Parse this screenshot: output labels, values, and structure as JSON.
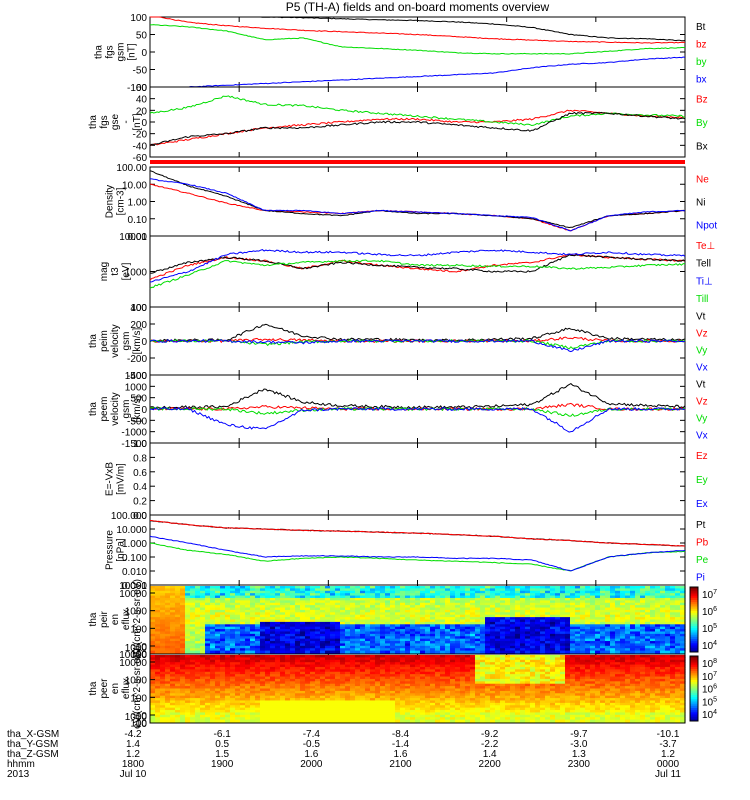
{
  "title": "P5 (TH-A) fields and on-board moments overview",
  "colors": {
    "black": "#000000",
    "red": "#ff0000",
    "green": "#00dd00",
    "blue": "#0000ff"
  },
  "chart_data": [
    {
      "type": "line",
      "ylabel": "tha fgs gsm [nT]",
      "yticks": [
        "100",
        "50",
        "0",
        "-50",
        "-100"
      ],
      "series": [
        {
          "name": "Bt",
          "color": "black",
          "values": [
            105,
            108,
            105,
            100,
            98,
            95,
            92,
            90,
            86,
            80,
            70,
            50,
            40,
            38,
            32
          ]
        },
        {
          "name": "bz",
          "color": "red",
          "values": [
            105,
            85,
            75,
            68,
            62,
            58,
            54,
            50,
            44,
            38,
            34,
            30,
            28,
            26,
            27
          ]
        },
        {
          "name": "by",
          "color": "green",
          "values": [
            78,
            72,
            60,
            35,
            40,
            15,
            10,
            5,
            -2,
            -5,
            -5,
            -5,
            2,
            10,
            12
          ]
        },
        {
          "name": "bx",
          "color": "blue",
          "values": [
            -110,
            -100,
            -95,
            -90,
            -85,
            -80,
            -75,
            -70,
            -65,
            -60,
            -45,
            -35,
            -30,
            -20,
            -15
          ]
        }
      ]
    },
    {
      "type": "line",
      "ylabel": "tha fgs gse - [nT]",
      "yticks": [
        "60",
        "40",
        "20",
        "0",
        "-20",
        "-40",
        "-60"
      ],
      "series": [
        {
          "name": "Bz",
          "color": "red",
          "values": [
            -40,
            -30,
            -20,
            -10,
            -5,
            0,
            5,
            5,
            0,
            0,
            5,
            20,
            15,
            10,
            8
          ]
        },
        {
          "name": "By",
          "color": "green",
          "values": [
            15,
            25,
            45,
            30,
            28,
            20,
            15,
            10,
            5,
            0,
            -5,
            10,
            15,
            12,
            10
          ]
        },
        {
          "name": "Bx",
          "color": "black",
          "values": [
            -40,
            -25,
            -20,
            -10,
            -10,
            -5,
            0,
            0,
            -5,
            -10,
            -15,
            15,
            15,
            10,
            5
          ]
        }
      ]
    },
    {
      "type": "bar",
      "ylabel": "",
      "note": "flag bar"
    },
    {
      "type": "line",
      "ylabel": "Density [cm-3]",
      "yticks": [
        "100.00",
        "10.00",
        "1.00",
        "0.10",
        "0.01"
      ],
      "log": true,
      "series": [
        {
          "name": "Ne",
          "color": "red",
          "values": [
            10,
            3,
            0.8,
            0.3,
            0.25,
            0.2,
            0.3,
            0.25,
            0.2,
            0.15,
            0.1,
            0.02,
            0.15,
            0.2,
            0.3
          ]
        },
        {
          "name": "Ni",
          "color": "black",
          "values": [
            60,
            8,
            2,
            0.3,
            0.2,
            0.15,
            0.3,
            0.2,
            0.2,
            0.15,
            0.1,
            0.03,
            0.15,
            0.2,
            0.3
          ]
        },
        {
          "name": "Npot",
          "color": "blue",
          "values": [
            20,
            10,
            3,
            0.3,
            0.3,
            0.2,
            0.3,
            0.25,
            0.2,
            0.15,
            0.12,
            0.02,
            0.15,
            0.25,
            0.3
          ]
        }
      ]
    },
    {
      "type": "line",
      "ylabel": "mag t3 [eV]",
      "yticks": [
        "10000",
        "1000",
        "100"
      ],
      "log": true,
      "series": [
        {
          "name": "Te⊥",
          "color": "red",
          "values": [
            600,
            1500,
            2500,
            2000,
            1200,
            2000,
            1500,
            1200,
            1000,
            1500,
            1800,
            3000,
            2500,
            2200,
            2000
          ]
        },
        {
          "name": "Tell",
          "color": "black",
          "values": [
            900,
            1800,
            2500,
            2000,
            1200,
            1800,
            1500,
            1300,
            1200,
            1000,
            1000,
            3000,
            2500,
            2200,
            2000
          ]
        },
        {
          "name": "Ti⊥",
          "color": "blue",
          "values": [
            500,
            1000,
            3000,
            4000,
            3500,
            3500,
            3000,
            2800,
            3500,
            4000,
            3500,
            3000,
            3500,
            3000,
            2800
          ]
        },
        {
          "name": "Till",
          "color": "green",
          "values": [
            350,
            800,
            2000,
            1500,
            1800,
            2000,
            2000,
            1500,
            1500,
            1400,
            1400,
            1200,
            1300,
            1500,
            1600
          ]
        }
      ]
    },
    {
      "type": "line",
      "ylabel": "tha peim velocity gsm [km/s]",
      "yticks": [
        "400",
        "200",
        "0",
        "-200",
        "-400"
      ],
      "series": [
        {
          "name": "Vt",
          "color": "black",
          "values": [
            5,
            10,
            10,
            200,
            60,
            20,
            20,
            10,
            10,
            20,
            30,
            150,
            30,
            20,
            10
          ]
        },
        {
          "name": "Vz",
          "color": "red",
          "values": [
            0,
            0,
            0,
            20,
            10,
            0,
            0,
            0,
            0,
            0,
            0,
            40,
            0,
            0,
            0
          ]
        },
        {
          "name": "Vy",
          "color": "green",
          "values": [
            0,
            0,
            0,
            -40,
            -10,
            0,
            0,
            0,
            0,
            0,
            0,
            -80,
            0,
            0,
            0
          ]
        },
        {
          "name": "Vx",
          "color": "blue",
          "values": [
            0,
            0,
            0,
            -10,
            -20,
            0,
            0,
            0,
            0,
            0,
            0,
            -120,
            0,
            0,
            0
          ]
        }
      ]
    },
    {
      "type": "line",
      "ylabel": "tha peem velocity gsm [km/s]",
      "yticks": [
        "1500",
        "1000",
        "500",
        "0",
        "-500",
        "-1000",
        "-1500"
      ],
      "series": [
        {
          "name": "Vt",
          "color": "black",
          "values": [
            50,
            80,
            100,
            900,
            300,
            150,
            100,
            80,
            80,
            120,
            200,
            1100,
            250,
            150,
            100
          ]
        },
        {
          "name": "Vz",
          "color": "red",
          "values": [
            0,
            0,
            0,
            100,
            50,
            0,
            0,
            0,
            0,
            0,
            0,
            200,
            0,
            0,
            0
          ]
        },
        {
          "name": "Vy",
          "color": "green",
          "values": [
            0,
            0,
            0,
            -200,
            -50,
            0,
            0,
            0,
            0,
            0,
            0,
            -300,
            0,
            0,
            0
          ]
        },
        {
          "name": "Vx",
          "color": "blue",
          "values": [
            0,
            0,
            -700,
            -900,
            -50,
            0,
            0,
            0,
            0,
            0,
            0,
            -1000,
            0,
            0,
            0
          ]
        }
      ]
    },
    {
      "type": "line",
      "ylabel": "E=-VxB [mV/m]",
      "yticks": [
        "1.0",
        "0.8",
        "0.6",
        "0.4",
        "0.2",
        "0.0"
      ],
      "series": [
        {
          "name": "Ez",
          "color": "red",
          "values": []
        },
        {
          "name": "Ey",
          "color": "green",
          "values": []
        },
        {
          "name": "Ex",
          "color": "blue",
          "values": []
        }
      ]
    },
    {
      "type": "line",
      "ylabel": "Pressure [nPa]",
      "yticks": [
        "100.000",
        "10.000",
        "1.000",
        "0.100",
        "0.010",
        "0.001"
      ],
      "log": true,
      "series": [
        {
          "name": "Pt",
          "color": "black",
          "values": [
            40,
            20,
            12,
            10,
            8,
            7,
            6,
            5,
            4,
            3,
            2,
            1.5,
            1,
            0.8,
            0.6
          ]
        },
        {
          "name": "Pb",
          "color": "red",
          "values": [
            40,
            20,
            12,
            10,
            8,
            7,
            6,
            5,
            4,
            3,
            2,
            1.5,
            1,
            0.8,
            0.6
          ]
        },
        {
          "name": "Pe",
          "color": "green",
          "values": [
            1,
            0.3,
            0.15,
            0.05,
            0.08,
            0.1,
            0.08,
            0.06,
            0.05,
            0.04,
            0.03,
            0.01,
            0.1,
            0.2,
            0.25
          ]
        },
        {
          "name": "Pi",
          "color": "blue",
          "values": [
            3,
            1,
            0.3,
            0.1,
            0.12,
            0.12,
            0.1,
            0.1,
            0.08,
            0.08,
            0.06,
            0.01,
            0.1,
            0.2,
            0.3
          ]
        }
      ]
    },
    {
      "type": "heatmap",
      "ylabel": "tha peir en eflux eV/(cm^2-s-sr-eV)",
      "yticks": [
        "10000",
        "1000",
        "100",
        "10"
      ],
      "colorbar": [
        "10^7",
        "10^6",
        "10^5",
        "10^4"
      ]
    },
    {
      "type": "heatmap",
      "ylabel": "tha peer en eflux eV/(cm^2-s-sr-eV)",
      "yticks": [
        "10000",
        "1000",
        "100",
        "10"
      ],
      "colorbar": [
        "10^8",
        "10^7",
        "10^6",
        "10^5",
        "10^4"
      ]
    }
  ],
  "xaxis": {
    "row_labels": [
      "tha_X-GSM",
      "tha_Y-GSM",
      "tha_Z-GSM",
      "hhmm",
      "2013"
    ],
    "columns": [
      [
        "-4.2",
        "1.4",
        "1.2",
        "1800",
        "Jul 10"
      ],
      [
        "-6.1",
        "0.5",
        "1.5",
        "1900",
        ""
      ],
      [
        "-7.4",
        "-0.5",
        "1.6",
        "2000",
        ""
      ],
      [
        "-8.4",
        "-1.4",
        "1.6",
        "2100",
        ""
      ],
      [
        "-9.2",
        "-2.2",
        "1.4",
        "2200",
        ""
      ],
      [
        "-9.7",
        "-3.0",
        "1.3",
        "2300",
        ""
      ],
      [
        "-10.1",
        "-3.7",
        "1.2",
        "0000",
        "Jul 11"
      ]
    ]
  }
}
